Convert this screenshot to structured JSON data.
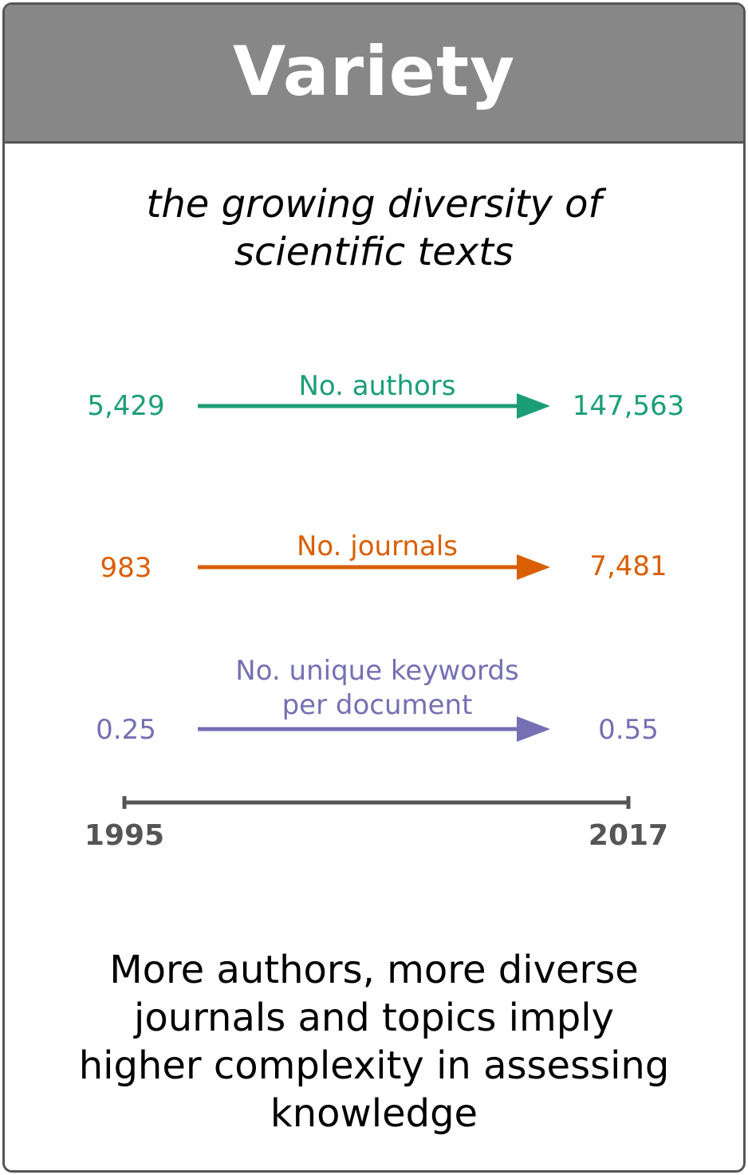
{
  "title": "Variety",
  "subtitle": [
    "the growing diversity of",
    "scientific texts"
  ],
  "metrics": [
    {
      "label": [
        "No. authors"
      ],
      "start_value": "5,429",
      "end_value": "147,563",
      "color": "#1b9e77"
    },
    {
      "label": [
        "No. journals"
      ],
      "start_value": "983",
      "end_value": "7,481",
      "color": "#d95f02"
    },
    {
      "label": [
        "No. unique keywords",
        "per document"
      ],
      "start_value": "0.25",
      "end_value": "0.55",
      "color": "#7570b3"
    }
  ],
  "timeline": {
    "start_year": "1995",
    "end_year": "2017",
    "color": "#555555"
  },
  "conclusion": [
    "More authors, more diverse",
    "journals and topics imply",
    "higher complexity in assessing",
    "knowledge"
  ]
}
